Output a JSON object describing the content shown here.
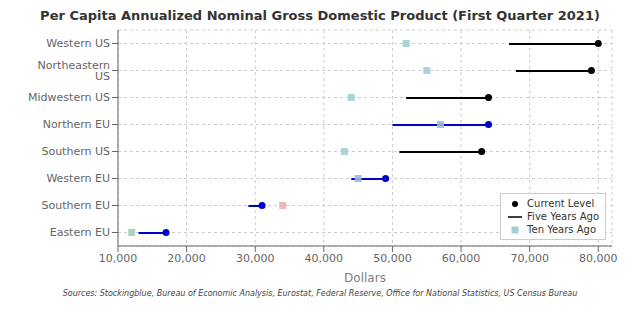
{
  "chart_data": {
    "type": "dumbbell",
    "orientation": "horizontal",
    "title": "Per Capita Annualized Nominal Gross Domestic Product (First Quarter 2021)",
    "xlabel": "Dollars",
    "annotations": [
      "Sources: Stockingblue, Bureau of Economic Analysis, Eurostat, Federal Reserve, Office for National Statistics, US Census Bureau"
    ],
    "categories": [
      "Western US",
      "Northeastern US",
      "Midwestern US",
      "Northern EU",
      "Southern US",
      "Western EU",
      "Southern EU",
      "Eastern EU"
    ],
    "series": [
      {
        "name": "Current Level",
        "color": "black",
        "colors": [
          "black",
          "black",
          "black",
          "#0000cc",
          "black",
          "#0000cc",
          "#0000cc",
          "#0000cc"
        ],
        "marker": "circle",
        "values": [
          80000,
          79000,
          64000,
          64000,
          63000,
          49000,
          31000,
          17000
        ]
      },
      {
        "name": "Five Years Ago",
        "color": "black",
        "colors": [
          "black",
          "black",
          "black",
          "#0000cc",
          "black",
          "#0000cc",
          "#0000cc",
          "#0000cc"
        ],
        "line_style": "solid",
        "values": [
          67000,
          68000,
          52000,
          50000,
          51000,
          44000,
          29000,
          13000
        ]
      },
      {
        "name": "Ten Years Ago",
        "color": "#a0d0d0",
        "colors": [
          "#a0d0d0",
          "#a0d0d0",
          "#a0d0d0",
          "#a0b8d0",
          "#a0d0d0",
          "#a0b8d0",
          "#f0b0b0",
          "#a0d0c0"
        ],
        "marker": "square",
        "values": [
          52000,
          55000,
          44000,
          57000,
          43000,
          45000,
          34000,
          12000
        ]
      }
    ],
    "xlim": [
      10000,
      82000
    ],
    "xticks": [
      {
        "value": 10000,
        "label": "10,000"
      },
      {
        "value": 20000,
        "label": "20,000"
      },
      {
        "value": 30000,
        "label": "30,000"
      },
      {
        "value": 40000,
        "label": "40,000"
      },
      {
        "value": 50000,
        "label": "50,000"
      },
      {
        "value": 60000,
        "label": "60,000"
      },
      {
        "value": 70000,
        "label": "70,000"
      },
      {
        "value": 80000,
        "label": "80,000"
      }
    ],
    "grid": true,
    "legend": "lower right"
  }
}
